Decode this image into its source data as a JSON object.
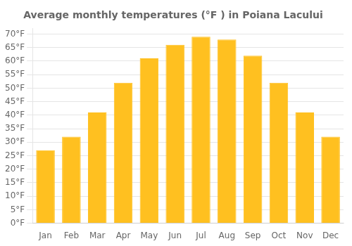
{
  "chart_data": {
    "type": "bar",
    "title": "Average monthly temperatures (°F ) in Poiana Lacului",
    "categories": [
      "Jan",
      "Feb",
      "Mar",
      "Apr",
      "May",
      "Jun",
      "Jul",
      "Aug",
      "Sep",
      "Oct",
      "Nov",
      "Dec"
    ],
    "values": [
      27,
      32,
      41,
      52,
      61,
      66,
      69,
      68,
      62,
      52,
      41,
      32
    ],
    "color": "#FFC020",
    "ylim": [
      0,
      72
    ],
    "yticks": [
      {
        "value": 0,
        "label": "0°F"
      },
      {
        "value": 5,
        "label": "5°F"
      },
      {
        "value": 10,
        "label": "10°F"
      },
      {
        "value": 15,
        "label": "15°F"
      },
      {
        "value": 20,
        "label": "20°F"
      },
      {
        "value": 25,
        "label": "25°F"
      },
      {
        "value": 30,
        "label": "30°F"
      },
      {
        "value": 35,
        "label": "35°F"
      },
      {
        "value": 40,
        "label": "40°F"
      },
      {
        "value": 45,
        "label": "45°F"
      },
      {
        "value": 50,
        "label": "50°F"
      },
      {
        "value": 55,
        "label": "55°F"
      },
      {
        "value": 60,
        "label": "60°F"
      },
      {
        "value": 65,
        "label": "65°F"
      },
      {
        "value": 70,
        "label": "70°F"
      }
    ],
    "grid": true
  }
}
